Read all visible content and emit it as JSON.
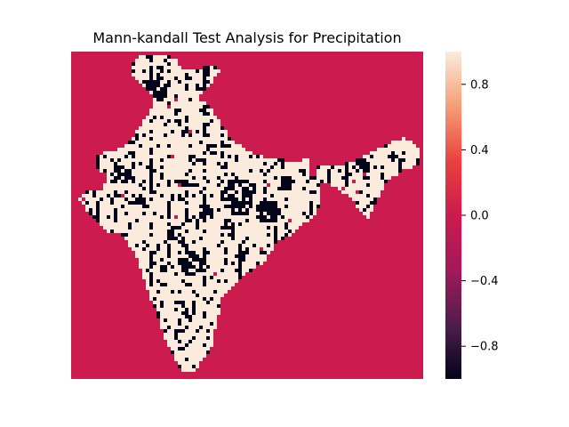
{
  "chart_data": {
    "type": "heatmap",
    "title": "Mann-kandall Test Analysis for Precipitation",
    "xlabel": "",
    "ylabel": "",
    "axes_visible": false,
    "value_range": [
      -1,
      1
    ],
    "colormap": "rocket",
    "colormap_stops": [
      "#03051a",
      "#4c1d4b",
      "#a11a5b",
      "#cb1b4f",
      "#e83f3f",
      "#f69c73",
      "#faebdd"
    ],
    "background_value": 0,
    "values_present": [
      -1,
      0,
      1
    ],
    "region_shape": "India",
    "colorbar": {
      "ticks": [
        0.8,
        0.4,
        0.0,
        -0.4,
        -0.8
      ],
      "tick_labels": [
        "0.8",
        "0.4",
        "0.0",
        "−0.4",
        "−0.8"
      ]
    }
  }
}
